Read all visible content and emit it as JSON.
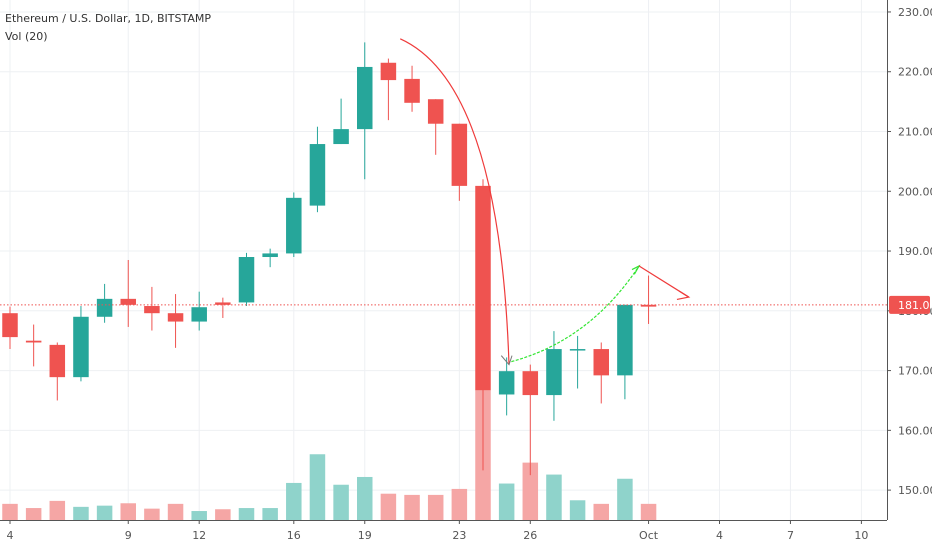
{
  "legend": {
    "symbol_line": "Ethereum / U.S. Dollar, 1D, BITSTAMP",
    "volume_line": "Vol (20)"
  },
  "colors": {
    "up": "#26a69a",
    "down": "#ef5350",
    "vol_up": "#8fd3cb",
    "vol_down": "#f5a6a5",
    "grid": "#eef0f3",
    "price_line": "#ef5350",
    "arrow_green": "#33e533",
    "arrow_red": "#ef3b3b"
  },
  "chart_data": {
    "type": "candlestick",
    "y_axis": {
      "min": 145,
      "max": 232,
      "ticks": [
        150,
        160,
        170,
        180,
        190,
        200,
        210,
        220,
        230
      ]
    },
    "x_ticks": [
      {
        "label": "4",
        "index": 0
      },
      {
        "label": "9",
        "index": 5
      },
      {
        "label": "12",
        "index": 8
      },
      {
        "label": "16",
        "index": 12
      },
      {
        "label": "19",
        "index": 15
      },
      {
        "label": "23",
        "index": 19
      },
      {
        "label": "26",
        "index": 22
      },
      {
        "label": "Oct",
        "index": 27
      },
      {
        "label": "4",
        "index": 30
      },
      {
        "label": "7",
        "index": 33
      },
      {
        "label": "10",
        "index": 36
      }
    ],
    "current_price": {
      "value": 181.0,
      "label": "181.00"
    },
    "candles": [
      {
        "o": 179.6,
        "h": 180.7,
        "l": 173.6,
        "c": 175.6,
        "v": 147.7
      },
      {
        "o": 175.0,
        "h": 177.7,
        "l": 170.7,
        "c": 174.7,
        "v": 147.0
      },
      {
        "o": 174.3,
        "h": 174.7,
        "l": 165.0,
        "c": 168.9,
        "v": 148.2
      },
      {
        "o": 168.9,
        "h": 180.8,
        "l": 168.2,
        "c": 179.0,
        "v": 147.2
      },
      {
        "o": 179.0,
        "h": 184.5,
        "l": 178.0,
        "c": 182.0,
        "v": 147.4
      },
      {
        "o": 182.0,
        "h": 188.5,
        "l": 177.3,
        "c": 181.0,
        "v": 147.8
      },
      {
        "o": 180.8,
        "h": 184.0,
        "l": 176.7,
        "c": 179.6,
        "v": 146.9
      },
      {
        "o": 179.6,
        "h": 182.8,
        "l": 173.8,
        "c": 178.2,
        "v": 147.7
      },
      {
        "o": 178.2,
        "h": 183.2,
        "l": 176.7,
        "c": 180.6,
        "v": 146.5
      },
      {
        "o": 181.4,
        "h": 182.2,
        "l": 178.8,
        "c": 181.0,
        "v": 146.8
      },
      {
        "o": 181.4,
        "h": 189.7,
        "l": 180.8,
        "c": 189.0,
        "v": 147.0
      },
      {
        "o": 189.0,
        "h": 190.4,
        "l": 187.3,
        "c": 189.6,
        "v": 147.0
      },
      {
        "o": 189.6,
        "h": 199.8,
        "l": 189.0,
        "c": 198.9,
        "v": 151.2
      },
      {
        "o": 197.6,
        "h": 210.8,
        "l": 196.5,
        "c": 207.9,
        "v": 156.0
      },
      {
        "o": 207.9,
        "h": 215.5,
        "l": 207.9,
        "c": 210.4,
        "v": 150.9
      },
      {
        "o": 210.4,
        "h": 224.9,
        "l": 202.0,
        "c": 220.8,
        "v": 152.2
      },
      {
        "o": 221.5,
        "h": 222.2,
        "l": 211.9,
        "c": 218.6,
        "v": 149.4
      },
      {
        "o": 218.8,
        "h": 221.0,
        "l": 213.3,
        "c": 214.8,
        "v": 149.2
      },
      {
        "o": 215.4,
        "h": 215.4,
        "l": 206.1,
        "c": 211.3,
        "v": 149.2
      },
      {
        "o": 211.3,
        "h": 211.3,
        "l": 198.4,
        "c": 200.9,
        "v": 150.2
      },
      {
        "o": 200.9,
        "h": 202.0,
        "l": 153.3,
        "c": 166.7,
        "v": 166.7
      },
      {
        "o": 166.0,
        "h": 172.2,
        "l": 162.5,
        "c": 169.9,
        "v": 151.1
      },
      {
        "o": 169.9,
        "h": 171.0,
        "l": 152.5,
        "c": 165.9,
        "v": 154.6
      },
      {
        "o": 165.9,
        "h": 176.6,
        "l": 161.6,
        "c": 173.6,
        "v": 152.6
      },
      {
        "o": 173.6,
        "h": 175.8,
        "l": 167.0,
        "c": 173.6,
        "v": 148.3
      },
      {
        "o": 173.6,
        "h": 174.7,
        "l": 164.5,
        "c": 169.2,
        "v": 147.7
      },
      {
        "o": 169.2,
        "h": 181.0,
        "l": 165.2,
        "c": 181.0,
        "v": 151.9
      },
      {
        "o": 181.0,
        "h": 185.9,
        "l": 177.8,
        "c": 180.7,
        "v": 147.7
      }
    ]
  }
}
